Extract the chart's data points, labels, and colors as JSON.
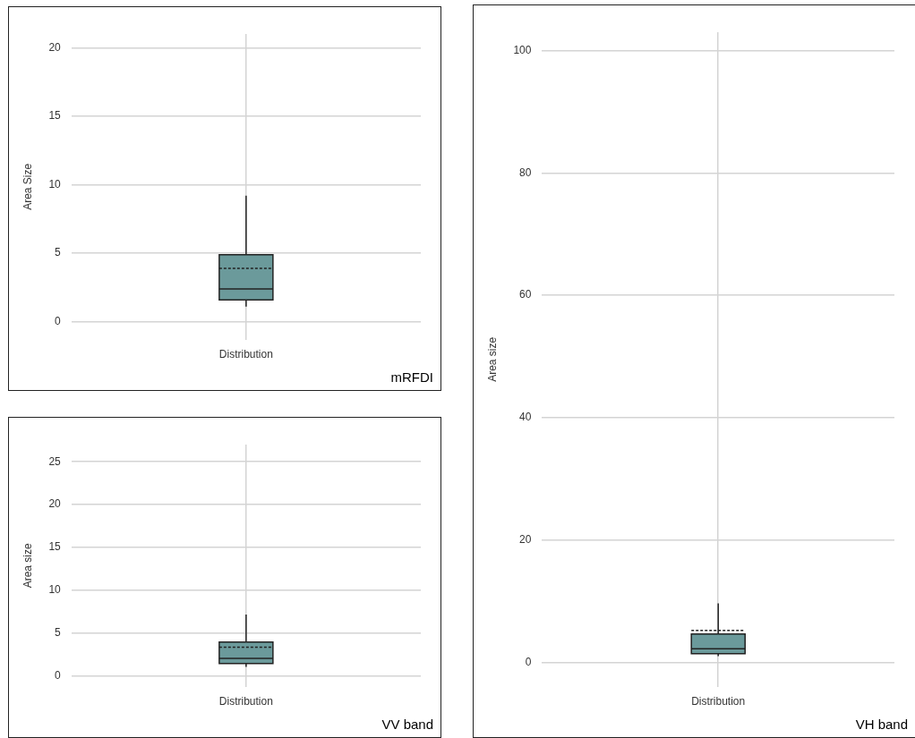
{
  "chart_data": [
    {
      "type": "box",
      "ylabel": "Area Size",
      "categories": [
        "Distribution"
      ],
      "ylim": [
        -1.3,
        21
      ],
      "yticks": [
        0,
        5,
        10,
        15,
        20
      ],
      "grid": true,
      "annotations": [
        "mRFDI"
      ],
      "series": [
        {
          "color": "#6b9a9b",
          "boxes": [
            {
              "low": 1.1,
              "q1": 1.6,
              "median": 2.4,
              "q3": 4.9,
              "high": 9.2,
              "mean": 3.9
            }
          ]
        }
      ]
    },
    {
      "type": "box",
      "ylabel": "Area size",
      "categories": [
        "Distribution"
      ],
      "ylim": [
        -1.2,
        27
      ],
      "yticks": [
        0,
        5,
        10,
        15,
        20,
        25
      ],
      "grid": true,
      "annotations": [
        "VV band"
      ],
      "series": [
        {
          "color": "#6b9a9b",
          "boxes": [
            {
              "low": 1.1,
              "q1": 1.5,
              "median": 2.1,
              "q3": 4.0,
              "high": 7.2,
              "mean": 3.4
            }
          ]
        }
      ]
    },
    {
      "type": "box",
      "ylabel": "Area size",
      "categories": [
        "Distribution"
      ],
      "ylim": [
        -4,
        103
      ],
      "yticks": [
        0,
        20,
        40,
        60,
        80,
        100
      ],
      "grid": true,
      "annotations": [
        "VH band"
      ],
      "series": [
        {
          "color": "#6b9a9b",
          "boxes": [
            {
              "low": 1.0,
              "q1": 1.4,
              "median": 2.2,
              "q3": 4.6,
              "high": 9.6,
              "mean": 5.2
            }
          ]
        }
      ]
    }
  ]
}
